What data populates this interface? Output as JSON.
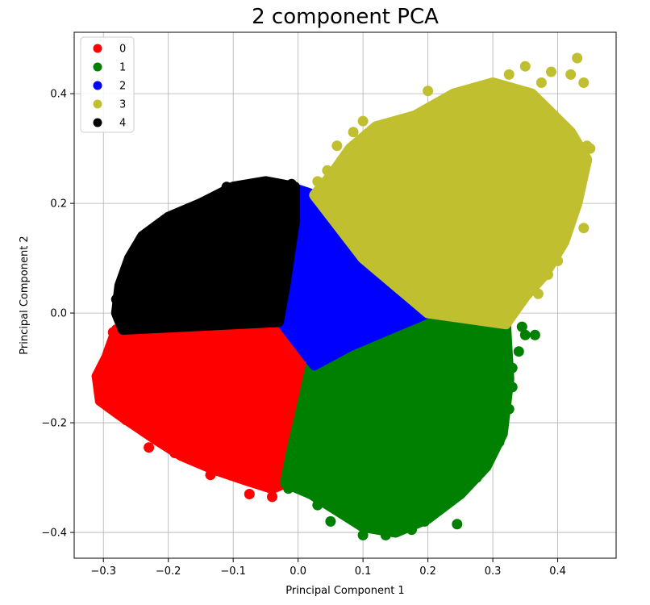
{
  "chart_data": {
    "type": "scatter",
    "title": "2 component PCA",
    "xlabel": "Principal Component 1",
    "ylabel": "Principal Component 2",
    "xlim": [
      -0.345,
      0.49
    ],
    "ylim": [
      -0.447,
      0.512
    ],
    "xticks": [
      -0.3,
      -0.2,
      -0.1,
      0.0,
      0.1,
      0.2,
      0.3,
      0.4
    ],
    "xtick_labels": [
      "−0.3",
      "−0.2",
      "−0.1",
      "0.0",
      "0.1",
      "0.2",
      "0.3",
      "0.4"
    ],
    "yticks": [
      -0.4,
      -0.2,
      0.0,
      0.2,
      0.4
    ],
    "ytick_labels": [
      "−0.4",
      "−0.2",
      "0.0",
      "0.2",
      "0.4"
    ],
    "grid": true,
    "legend_position": "top-left",
    "series": [
      {
        "name": "0",
        "color": "#ff0000",
        "region": [
          [
            -0.03,
            -0.016
          ],
          [
            -0.28,
            -0.03
          ],
          [
            -0.295,
            -0.08
          ],
          [
            -0.31,
            -0.115
          ],
          [
            -0.305,
            -0.16
          ],
          [
            -0.27,
            -0.19
          ],
          [
            -0.22,
            -0.23
          ],
          [
            -0.18,
            -0.26
          ],
          [
            -0.13,
            -0.285
          ],
          [
            -0.08,
            -0.305
          ],
          [
            -0.04,
            -0.32
          ],
          [
            -0.02,
            -0.31
          ],
          [
            -0.01,
            -0.28
          ],
          [
            0.0,
            -0.2
          ],
          [
            0.02,
            -0.09
          ]
        ],
        "outliers": [
          [
            -0.31,
            -0.115
          ],
          [
            -0.3,
            -0.155
          ],
          [
            -0.29,
            -0.15
          ],
          [
            -0.265,
            -0.195
          ],
          [
            -0.255,
            -0.195
          ],
          [
            -0.235,
            -0.215
          ],
          [
            -0.2,
            -0.24
          ],
          [
            -0.19,
            -0.255
          ],
          [
            -0.16,
            -0.255
          ],
          [
            -0.13,
            -0.285
          ],
          [
            -0.135,
            -0.295
          ],
          [
            -0.075,
            -0.33
          ],
          [
            -0.04,
            -0.335
          ],
          [
            -0.035,
            -0.305
          ],
          [
            -0.255,
            -0.12
          ],
          [
            -0.23,
            -0.245
          ],
          [
            -0.285,
            -0.035
          ]
        ]
      },
      {
        "name": "1",
        "color": "#008000",
        "region": [
          [
            0.2,
            0.0
          ],
          [
            0.32,
            -0.02
          ],
          [
            0.325,
            -0.12
          ],
          [
            0.315,
            -0.22
          ],
          [
            0.29,
            -0.28
          ],
          [
            0.25,
            -0.33
          ],
          [
            0.2,
            -0.375
          ],
          [
            0.15,
            -0.4
          ],
          [
            0.1,
            -0.39
          ],
          [
            0.06,
            -0.36
          ],
          [
            0.02,
            -0.33
          ],
          [
            -0.02,
            -0.31
          ],
          [
            -0.01,
            -0.25
          ],
          [
            0.0,
            -0.2
          ],
          [
            0.02,
            -0.095
          ],
          [
            0.08,
            -0.06
          ]
        ],
        "outliers": [
          [
            0.35,
            -0.04
          ],
          [
            0.365,
            -0.04
          ],
          [
            0.34,
            -0.07
          ],
          [
            0.33,
            -0.1
          ],
          [
            0.33,
            -0.135
          ],
          [
            0.325,
            -0.175
          ],
          [
            0.31,
            -0.235
          ],
          [
            0.29,
            -0.265
          ],
          [
            0.24,
            -0.335
          ],
          [
            0.245,
            -0.385
          ],
          [
            0.1,
            -0.405
          ],
          [
            0.135,
            -0.405
          ],
          [
            0.175,
            -0.395
          ],
          [
            0.05,
            -0.38
          ],
          [
            0.03,
            -0.35
          ],
          [
            -0.015,
            -0.32
          ],
          [
            0.345,
            -0.025
          ],
          [
            0.275,
            -0.3
          ],
          [
            0.195,
            -0.38
          ]
        ]
      },
      {
        "name": "2",
        "color": "#0000ff",
        "region": [
          [
            0.0,
            0.225
          ],
          [
            0.025,
            0.215
          ],
          [
            0.1,
            0.1
          ],
          [
            0.2,
            0.0
          ],
          [
            0.08,
            -0.06
          ],
          [
            0.025,
            -0.095
          ],
          [
            -0.03,
            -0.01
          ],
          [
            -0.02,
            0.05
          ],
          [
            -0.005,
            0.17
          ]
        ],
        "outliers": []
      },
      {
        "name": "3",
        "color": "#bfbf30",
        "region": [
          [
            0.025,
            0.215
          ],
          [
            0.05,
            0.25
          ],
          [
            0.08,
            0.3
          ],
          [
            0.12,
            0.34
          ],
          [
            0.18,
            0.36
          ],
          [
            0.24,
            0.4
          ],
          [
            0.3,
            0.42
          ],
          [
            0.36,
            0.4
          ],
          [
            0.42,
            0.33
          ],
          [
            0.445,
            0.28
          ],
          [
            0.43,
            0.2
          ],
          [
            0.41,
            0.13
          ],
          [
            0.38,
            0.07
          ],
          [
            0.35,
            0.03
          ],
          [
            0.32,
            -0.02
          ],
          [
            0.2,
            0.0
          ],
          [
            0.1,
            0.1
          ]
        ],
        "outliers": [
          [
            0.35,
            0.45
          ],
          [
            0.39,
            0.44
          ],
          [
            0.43,
            0.465
          ],
          [
            0.42,
            0.435
          ],
          [
            0.44,
            0.42
          ],
          [
            0.45,
            0.3
          ],
          [
            0.445,
            0.305
          ],
          [
            0.43,
            0.31
          ],
          [
            0.43,
            0.225
          ],
          [
            0.44,
            0.155
          ],
          [
            0.41,
            0.165
          ],
          [
            0.4,
            0.095
          ],
          [
            0.385,
            0.07
          ],
          [
            0.37,
            0.035
          ],
          [
            0.06,
            0.305
          ],
          [
            0.1,
            0.35
          ],
          [
            0.085,
            0.33
          ],
          [
            0.045,
            0.26
          ],
          [
            0.03,
            0.24
          ],
          [
            0.2,
            0.405
          ],
          [
            0.295,
            0.405
          ],
          [
            0.325,
            0.435
          ],
          [
            0.375,
            0.42
          ]
        ]
      },
      {
        "name": "4",
        "color": "#000000",
        "region": [
          [
            -0.005,
            0.23
          ],
          [
            -0.05,
            0.24
          ],
          [
            -0.1,
            0.23
          ],
          [
            -0.15,
            0.2
          ],
          [
            -0.2,
            0.175
          ],
          [
            -0.24,
            0.14
          ],
          [
            -0.26,
            0.1
          ],
          [
            -0.275,
            0.05
          ],
          [
            -0.28,
            0.0
          ],
          [
            -0.27,
            -0.03
          ],
          [
            -0.03,
            -0.016
          ],
          [
            -0.02,
            0.05
          ],
          [
            -0.005,
            0.17
          ]
        ],
        "outliers": [
          [
            -0.11,
            0.23
          ],
          [
            -0.145,
            0.195
          ],
          [
            -0.195,
            0.175
          ],
          [
            -0.22,
            0.145
          ],
          [
            -0.26,
            0.09
          ],
          [
            -0.28,
            0.025
          ],
          [
            -0.275,
            0.0
          ],
          [
            -0.045,
            0.23
          ],
          [
            -0.01,
            0.235
          ],
          [
            -0.07,
            0.235
          ],
          [
            -0.23,
            0.12
          ],
          [
            -0.265,
            0.065
          ]
        ]
      }
    ]
  }
}
